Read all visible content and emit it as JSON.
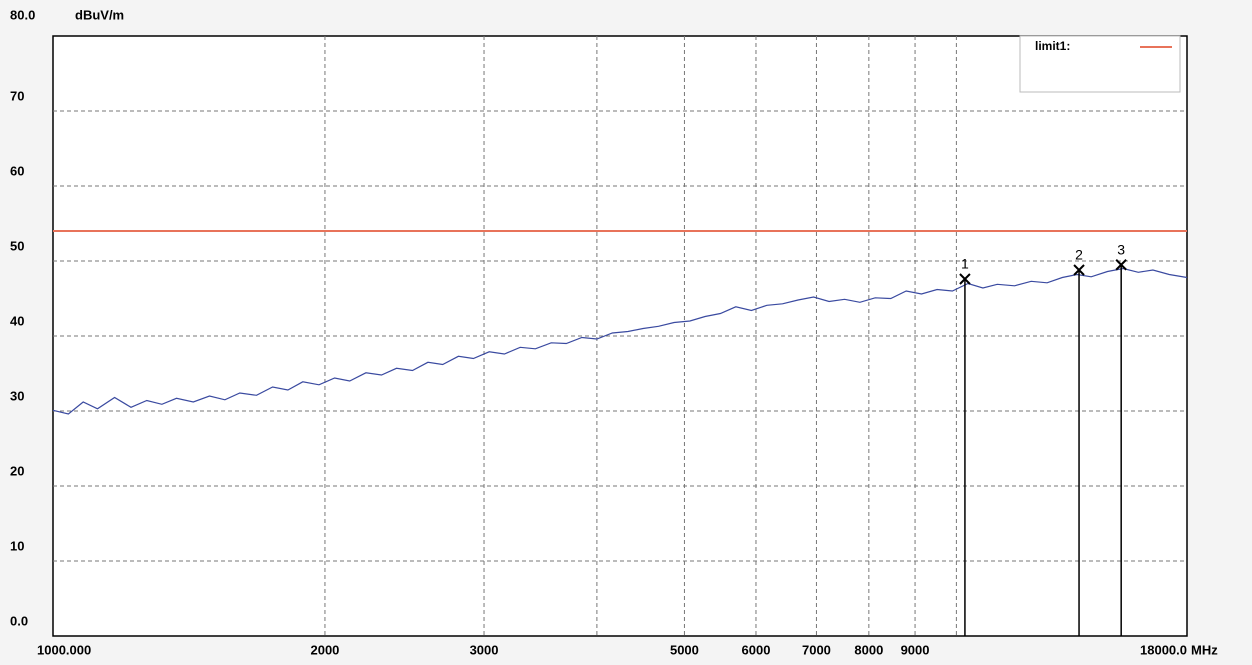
{
  "chart_data": {
    "type": "line",
    "y_unit": "dBuV/m",
    "x_unit": "MHz",
    "xscale": "log",
    "xlim": [
      1000,
      18000
    ],
    "ylim": [
      0,
      80
    ],
    "xticks": [
      {
        "value": 1000,
        "label": "1000.000"
      },
      2000,
      3000,
      {
        "value": 4000,
        "label": null
      },
      5000,
      6000,
      7000,
      8000,
      9000,
      {
        "value": 10000,
        "label": null
      },
      {
        "value": 18000,
        "label": "18000.0"
      }
    ],
    "yticks": [
      {
        "value": 0,
        "label": "0.0"
      },
      10,
      20,
      30,
      40,
      50,
      60,
      70,
      {
        "value": 80,
        "label": "80.0"
      }
    ],
    "grid": true,
    "legend": "upper right",
    "series": [
      {
        "name": "limit1:",
        "color": "#e8735a",
        "x": [
          1000,
          18000
        ],
        "values": [
          54,
          54
        ]
      },
      {
        "color": "#3a4aa0",
        "x": [
          1000,
          1040,
          1080,
          1120,
          1170,
          1220,
          1270,
          1320,
          1370,
          1430,
          1490,
          1550,
          1610,
          1680,
          1750,
          1820,
          1890,
          1970,
          2050,
          2130,
          2220,
          2310,
          2400,
          2500,
          2600,
          2700,
          2810,
          2920,
          3040,
          3160,
          3290,
          3420,
          3560,
          3700,
          3850,
          4000,
          4160,
          4330,
          4500,
          4680,
          4870,
          5070,
          5270,
          5480,
          5700,
          5930,
          6170,
          6420,
          6680,
          6950,
          7230,
          7520,
          7820,
          8130,
          8460,
          8800,
          9150,
          9520,
          9900,
          10300,
          10700,
          11100,
          11600,
          12100,
          12600,
          13100,
          13600,
          14100,
          14700,
          15300,
          15900,
          16500,
          17200,
          18000
        ],
        "values": [
          30.1,
          29.6,
          31.2,
          30.3,
          31.8,
          30.5,
          31.4,
          30.9,
          31.7,
          31.2,
          32.0,
          31.5,
          32.4,
          32.1,
          33.2,
          32.8,
          33.9,
          33.5,
          34.4,
          34.0,
          35.1,
          34.8,
          35.7,
          35.4,
          36.5,
          36.2,
          37.3,
          37.0,
          37.9,
          37.6,
          38.5,
          38.3,
          39.1,
          39.0,
          39.8,
          39.6,
          40.4,
          40.6,
          41.0,
          41.3,
          41.8,
          42.0,
          42.6,
          43.0,
          43.9,
          43.4,
          44.1,
          44.3,
          44.8,
          45.2,
          44.6,
          44.9,
          44.5,
          45.1,
          45.0,
          46.0,
          45.6,
          46.2,
          46.0,
          47.0,
          46.4,
          46.9,
          46.7,
          47.3,
          47.1,
          47.8,
          48.2,
          47.9,
          48.6,
          49.0,
          48.5,
          48.8,
          48.2,
          47.8
        ]
      }
    ],
    "markers": {
      "labels": [
        "1",
        "2",
        "3"
      ],
      "color": "#000000",
      "x": [
        10220,
        13670,
        15220
      ],
      "values": [
        47.6,
        48.8,
        49.5
      ]
    }
  }
}
